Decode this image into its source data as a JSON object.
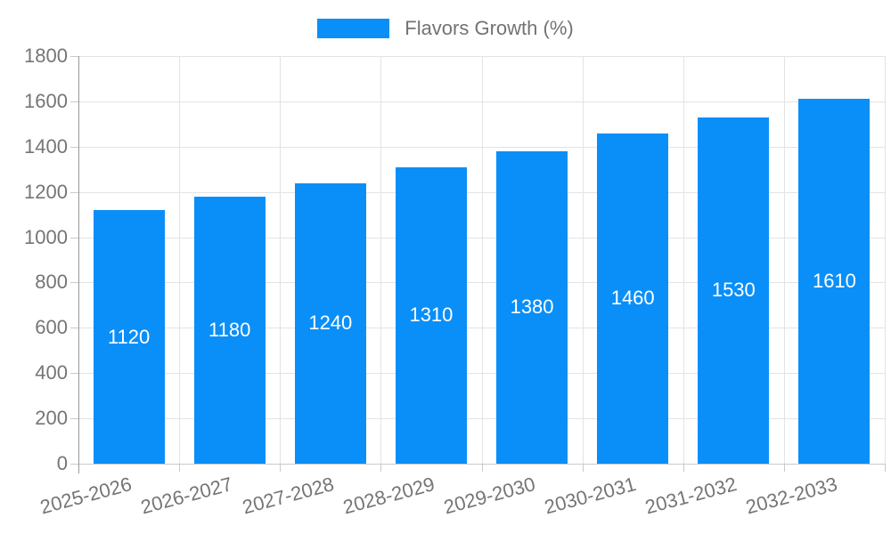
{
  "chart_data": {
    "type": "bar",
    "title": "",
    "series_name": "Flavors Growth (%)",
    "categories": [
      "2025-2026",
      "2026-2027",
      "2027-2028",
      "2028-2029",
      "2029-2030",
      "2030-2031",
      "2031-2032",
      "2032-2033"
    ],
    "values": [
      1120,
      1180,
      1240,
      1310,
      1380,
      1460,
      1530,
      1610
    ],
    "xlabel": "",
    "ylabel": "",
    "ylim": [
      0,
      1800
    ],
    "ytick_step": 200,
    "yticks": [
      0,
      200,
      400,
      600,
      800,
      1000,
      1200,
      1400,
      1600,
      1800
    ],
    "grid": true,
    "legend_position": "top-center",
    "value_labels": "inside-middle",
    "x_label_rotation_deg": -15
  },
  "colors": {
    "bar": "#0a8ff8",
    "value_label": "#ffffff",
    "axis_text": "#757575",
    "legend_text": "#737373",
    "gridline": "#e3e3e3",
    "axis_line": "#999999",
    "tick_line": "#c9c9c9",
    "background": "#ffffff"
  }
}
